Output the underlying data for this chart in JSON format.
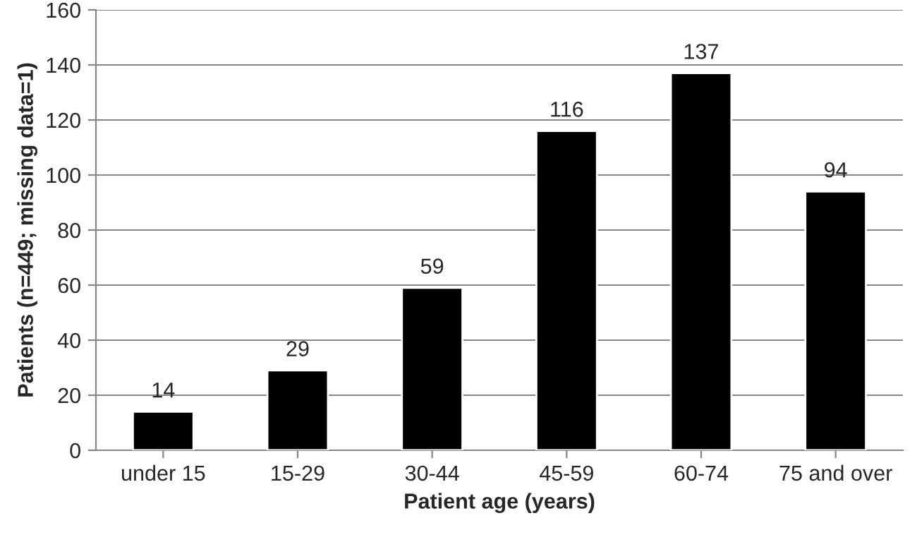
{
  "chart_data": {
    "type": "bar",
    "xlabel": "Patient age (years)",
    "ylabel": "Patients (n=449; missing data=1)",
    "categories": [
      "under 15",
      "15-29",
      "30-44",
      "45-59",
      "60-74",
      "75 and over"
    ],
    "values": [
      14,
      29,
      59,
      116,
      137,
      94
    ],
    "color": "#000000",
    "ylim": [
      0,
      160
    ],
    "yticks": [
      0,
      20,
      40,
      60,
      80,
      100,
      120,
      140,
      160
    ],
    "grid": "y",
    "data_labels": true
  }
}
